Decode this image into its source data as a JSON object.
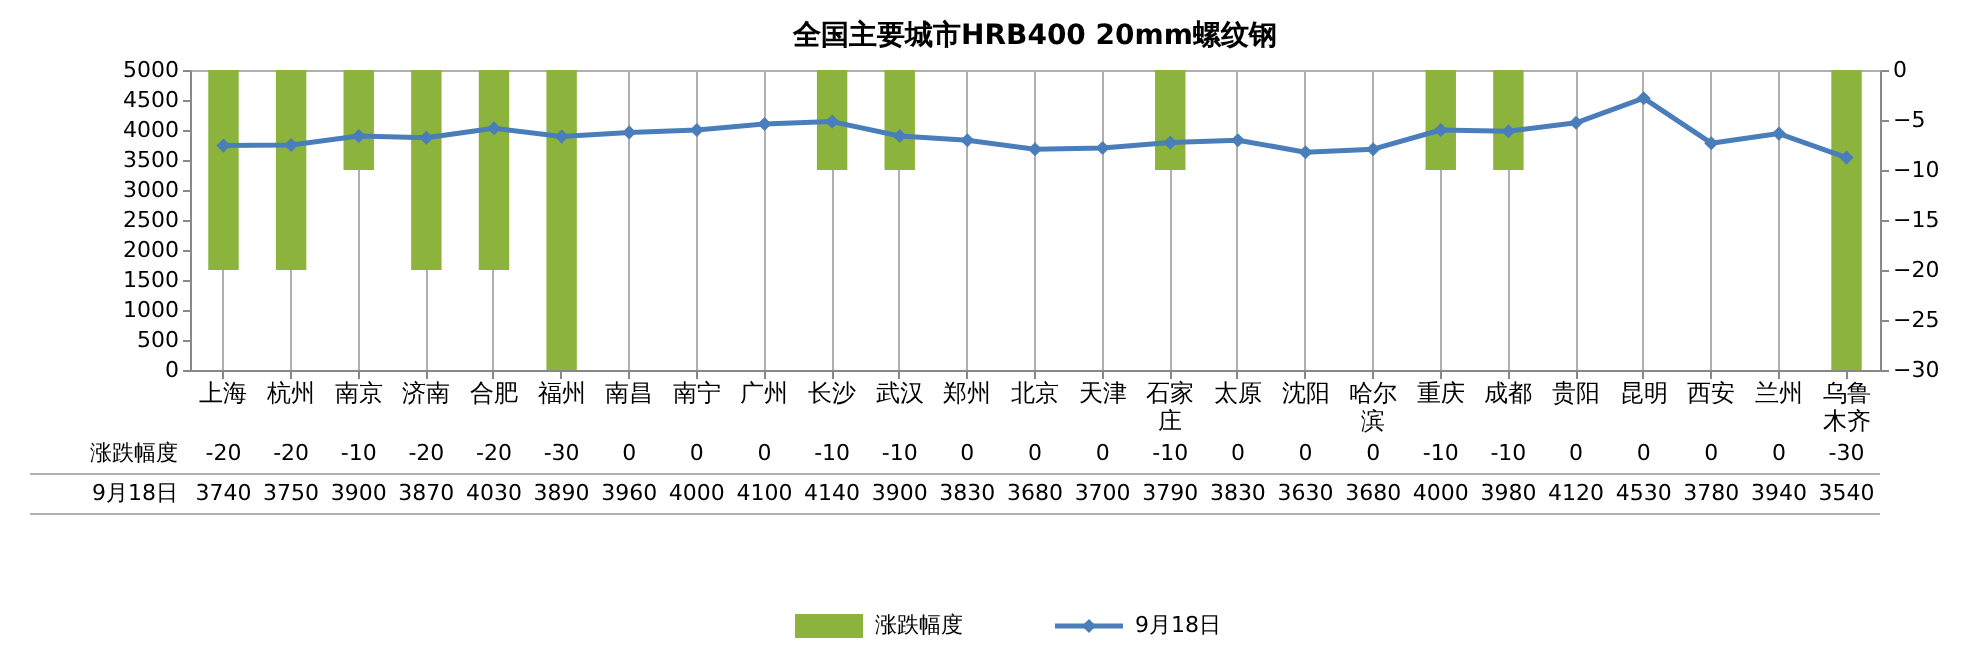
{
  "chart_data": {
    "type": "bar",
    "title": "全国主要城市HRB400 20mm螺纹钢",
    "categories": [
      "上海",
      "杭州",
      "南京",
      "济南",
      "合肥",
      "福州",
      "南昌",
      "南宁",
      "广州",
      "长沙",
      "武汉",
      "郑州",
      "北京",
      "天津",
      "石家庄",
      "太原",
      "沈阳",
      "哈尔滨",
      "重庆",
      "成都",
      "贵阳",
      "昆明",
      "西安",
      "兰州",
      "乌鲁木齐"
    ],
    "series": [
      {
        "name": "涨跌幅度",
        "axis": "y2",
        "color": "#8cb43c",
        "values": [
          -20,
          -20,
          -10,
          -20,
          -20,
          -30,
          0,
          0,
          0,
          -10,
          -10,
          0,
          0,
          0,
          -10,
          0,
          0,
          0,
          -10,
          -10,
          0,
          0,
          0,
          0,
          -30
        ]
      },
      {
        "name": "9月18日",
        "type": "line",
        "axis": "y",
        "color": "#4a7ebb",
        "marker": "diamond",
        "values": [
          3740,
          3750,
          3900,
          3870,
          4030,
          3890,
          3960,
          4000,
          4100,
          4140,
          3900,
          3830,
          3680,
          3700,
          3790,
          3830,
          3630,
          3680,
          4000,
          3980,
          4120,
          4530,
          3780,
          3940,
          3540
        ]
      }
    ],
    "ylim": [
      0,
      5000
    ],
    "yticks": [
      0,
      500,
      1000,
      1500,
      2000,
      2500,
      3000,
      3500,
      4000,
      4500,
      5000
    ],
    "y2lim": [
      -30,
      0
    ],
    "y2ticks": [
      -30,
      -25,
      -20,
      -15,
      -10,
      -5,
      0
    ],
    "grid": "x",
    "legend": "bottom",
    "data_labels": true
  }
}
